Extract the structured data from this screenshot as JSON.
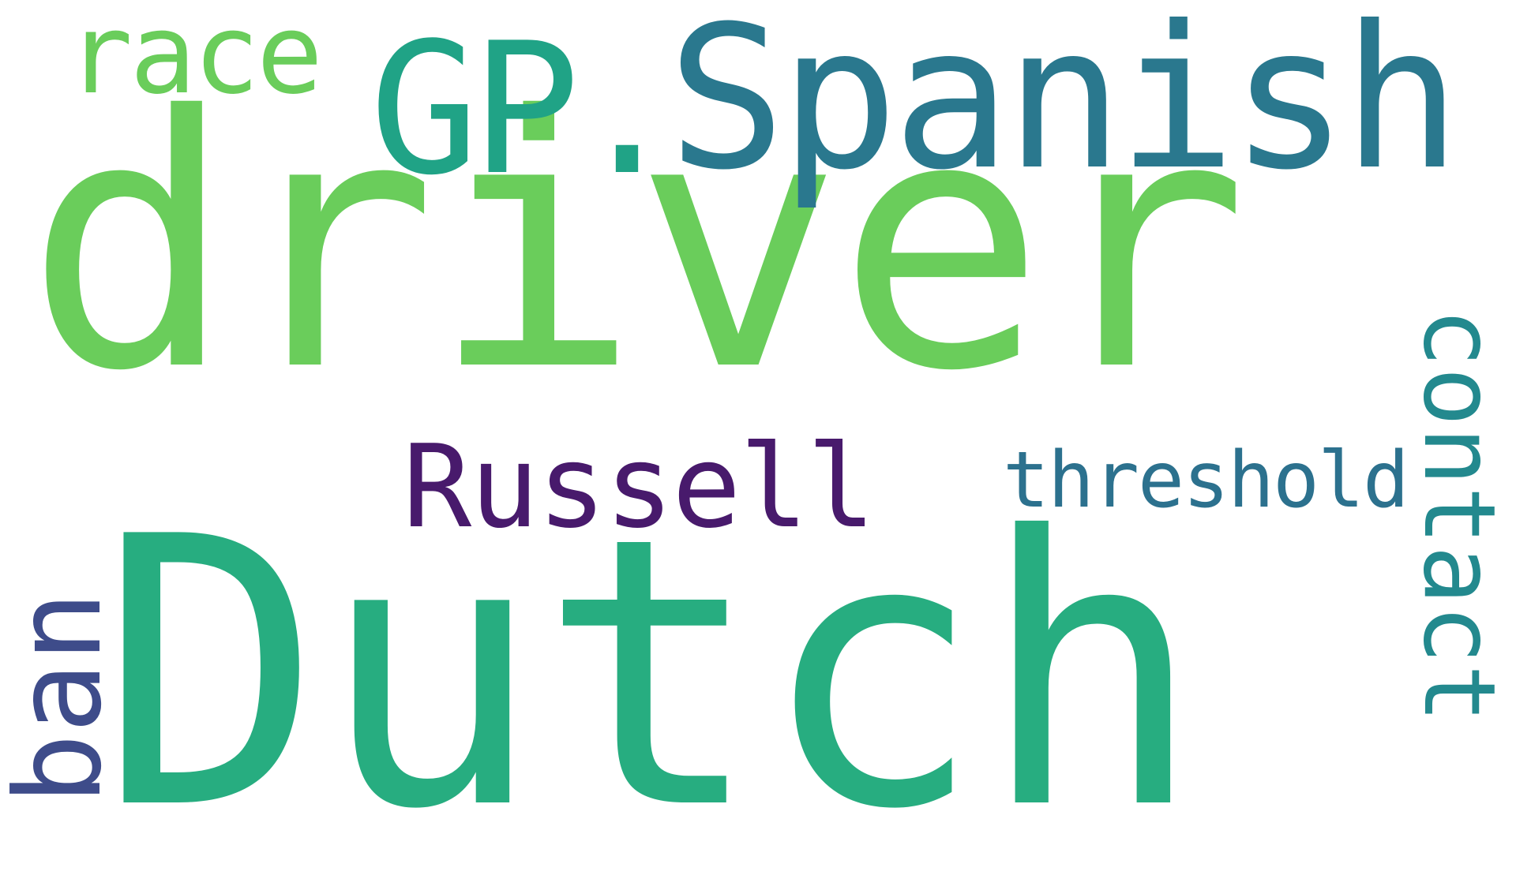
{
  "cloud": {
    "words": [
      {
        "text": "driver",
        "color": "#6acd5b"
      },
      {
        "text": "Dutch",
        "color": "#27ad80"
      },
      {
        "text": "GP.",
        "color": "#20a386"
      },
      {
        "text": "Spanish",
        "color": "#2a788e"
      },
      {
        "text": "race",
        "color": "#6acd5b"
      },
      {
        "text": "Russell",
        "color": "#481a6c"
      },
      {
        "text": "threshold",
        "color": "#2c718e"
      },
      {
        "text": "ban",
        "color": "#3e4c8a"
      },
      {
        "text": "contact",
        "color": "#23898e"
      }
    ],
    "background": "#ffffff"
  }
}
